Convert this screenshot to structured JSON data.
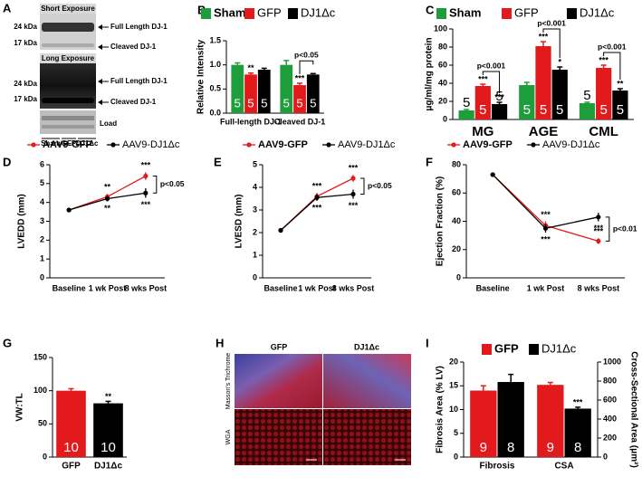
{
  "panel_a": {
    "panel": "A",
    "short_exposure": "Short Exposure",
    "long_exposure": "Long Exposure",
    "markers": [
      "24 kDa",
      "17 kDa"
    ],
    "bands": [
      "Full Length DJ-1",
      "Cleaved DJ-1"
    ],
    "load": "Load",
    "groups": [
      "Sham",
      "GFP",
      "DJ1Δc"
    ]
  },
  "panel_h": {
    "panel": "H",
    "columns": [
      "GFP",
      "DJ1Δc"
    ],
    "rows": [
      "Masson's Trichrome",
      "WGA"
    ]
  },
  "chart_data": [
    {
      "panel": "B",
      "type": "bar",
      "ylabel": "Relative Intensity",
      "categories": [
        "Full-length DJ-1",
        "Cleaved DJ-1"
      ],
      "series": [
        {
          "name": "Sham",
          "color": "#1e9e3a",
          "values": [
            1.0,
            1.0
          ],
          "errors": [
            0.04,
            0.09
          ],
          "n": [
            5,
            5
          ],
          "sig": [
            null,
            null
          ]
        },
        {
          "name": "GFP",
          "color": "#e31a1c",
          "values": [
            0.8,
            0.58
          ],
          "errors": [
            0.03,
            0.04
          ],
          "n": [
            5,
            5
          ],
          "sig": [
            "**",
            "***"
          ]
        },
        {
          "name": "DJ1Δc",
          "color": "#000000",
          "values": [
            0.9,
            0.8
          ],
          "errors": [
            0.03,
            0.02
          ],
          "n": [
            5,
            5
          ],
          "sig": [
            null,
            null
          ]
        }
      ],
      "brackets": [
        null,
        "p<0.05"
      ],
      "ylim": [
        0,
        1.5
      ],
      "yticks": [
        {
          "value": 0,
          "label": "0.0"
        },
        {
          "value": 0.5,
          "label": "0.5"
        },
        {
          "value": 1,
          "label": "1.0"
        },
        {
          "value": 1.5,
          "label": "1.5"
        }
      ]
    },
    {
      "panel": "C",
      "type": "bar",
      "ylabel": "μg/ml/mg protein",
      "categories": [
        "MG",
        "AGE",
        "CML"
      ],
      "series": [
        {
          "name": "Sham",
          "color": "#1e9e3a",
          "values": [
            10,
            38,
            18
          ],
          "errors": [
            1,
            3,
            1
          ],
          "n": [
            5,
            5,
            5
          ],
          "sig": [
            null,
            null,
            null
          ]
        },
        {
          "name": "GFP",
          "color": "#e31a1c",
          "values": [
            37,
            81,
            57
          ],
          "errors": [
            2,
            5,
            3
          ],
          "n": [
            5,
            5,
            5
          ],
          "sig": [
            "***",
            "***",
            "***"
          ]
        },
        {
          "name": "DJ1Δc",
          "color": "#000000",
          "values": [
            17,
            55,
            32
          ],
          "errors": [
            2,
            3,
            2
          ],
          "n": [
            5,
            5,
            5
          ],
          "sig": [
            "***",
            "*",
            "**"
          ]
        }
      ],
      "brackets": [
        "p<0.001",
        "p<0.001",
        "p<0.001"
      ],
      "ylim": [
        0,
        100
      ],
      "yticks": [
        0,
        20,
        40,
        60,
        80,
        100
      ]
    },
    {
      "panel": "D",
      "type": "line",
      "ylabel": "LVEDD (mm)",
      "categories": [
        "Baseline",
        "1 wk Post",
        "8 wks Post"
      ],
      "series": [
        {
          "name": "AAV9-GFP",
          "color": "#e31a1c",
          "values": [
            3.6,
            4.3,
            5.4
          ],
          "errors": [
            0.08,
            0.15,
            0.2
          ],
          "sig": [
            null,
            "**",
            "***"
          ]
        },
        {
          "name": "AAV9-DJ1Δc",
          "color": "#000000",
          "values": [
            3.6,
            4.2,
            4.5
          ],
          "errors": [
            0.08,
            0.15,
            0.25
          ],
          "sig": [
            null,
            "**",
            "***"
          ]
        }
      ],
      "brackets": [
        null,
        null,
        "p<0.05"
      ],
      "ylim": [
        0,
        6
      ],
      "yticks": [
        0,
        1,
        2,
        3,
        4,
        5,
        6
      ]
    },
    {
      "panel": "E",
      "type": "line",
      "ylabel": "LVESD (mm)",
      "categories": [
        "Baseline",
        "1 wk Post",
        "8 wks Post"
      ],
      "series": [
        {
          "name": "AAV9-GFP",
          "color": "#e31a1c",
          "values": [
            2.1,
            3.6,
            4.4
          ],
          "errors": [
            0.08,
            0.15,
            0.15
          ],
          "sig": [
            null,
            "***",
            "***"
          ]
        },
        {
          "name": "AAV9-DJ1Δc",
          "color": "#000000",
          "values": [
            2.1,
            3.55,
            3.7
          ],
          "errors": [
            0.08,
            0.15,
            0.2
          ],
          "sig": [
            null,
            "***",
            "***"
          ]
        }
      ],
      "brackets": [
        null,
        null,
        "p<0.05"
      ],
      "ylim": [
        0,
        5
      ],
      "yticks": [
        0,
        1,
        2,
        3,
        4,
        5
      ]
    },
    {
      "panel": "F",
      "type": "line",
      "ylabel": "Ejection Fraction (%)",
      "categories": [
        "Baseline",
        "1 wk Post",
        "8 wks Post"
      ],
      "series": [
        {
          "name": "AAV9-GFP",
          "color": "#e31a1c",
          "values": [
            73,
            37,
            26
          ],
          "errors": [
            1.5,
            3,
            2
          ],
          "sig": [
            null,
            "***",
            "***"
          ]
        },
        {
          "name": "AAV9-DJ1Δc",
          "color": "#000000",
          "values": [
            73,
            35,
            43
          ],
          "errors": [
            1.5,
            3,
            3
          ],
          "sig": [
            null,
            "***",
            "***"
          ]
        }
      ],
      "brackets": [
        null,
        null,
        "p<0.01"
      ],
      "ylim": [
        0,
        80
      ],
      "yticks": [
        0,
        20,
        40,
        60,
        80
      ]
    },
    {
      "panel": "G",
      "type": "bar",
      "ylabel": "VW:TL",
      "categories": [
        "GFP",
        "DJ1Δc"
      ],
      "values": [
        100,
        81
      ],
      "colors": [
        "#e31a1c",
        "#000000"
      ],
      "errors": [
        3,
        3
      ],
      "n": [
        10,
        10
      ],
      "sig": [
        null,
        "**"
      ],
      "ylim": [
        0,
        150
      ],
      "yticks": [
        0,
        50,
        100,
        150
      ]
    },
    {
      "panel": "I",
      "type": "bar",
      "ylabel": "Fibrosis Area (% LV)",
      "y2label": "Cross-Sectional Area (μm²)",
      "categories": [
        "Fibrosis",
        "CSA"
      ],
      "category_axes": [
        "y",
        "y2"
      ],
      "series": [
        {
          "name": "GFP",
          "color": "#e31a1c",
          "values": [
            14,
            760
          ],
          "errors": [
            1,
            25
          ],
          "n": [
            9,
            9
          ],
          "sig": [
            null,
            null
          ]
        },
        {
          "name": "DJ1Δc",
          "color": "#000000",
          "values": [
            15.8,
            510
          ],
          "errors": [
            1.6,
            15
          ],
          "n": [
            8,
            8
          ],
          "sig": [
            null,
            "***"
          ]
        }
      ],
      "ylim": [
        0,
        20
      ],
      "yticks": [
        0,
        5,
        10,
        15,
        20
      ],
      "y2lim": [
        0,
        1000
      ],
      "y2ticks": [
        0,
        200,
        400,
        600,
        800,
        1000
      ]
    }
  ]
}
